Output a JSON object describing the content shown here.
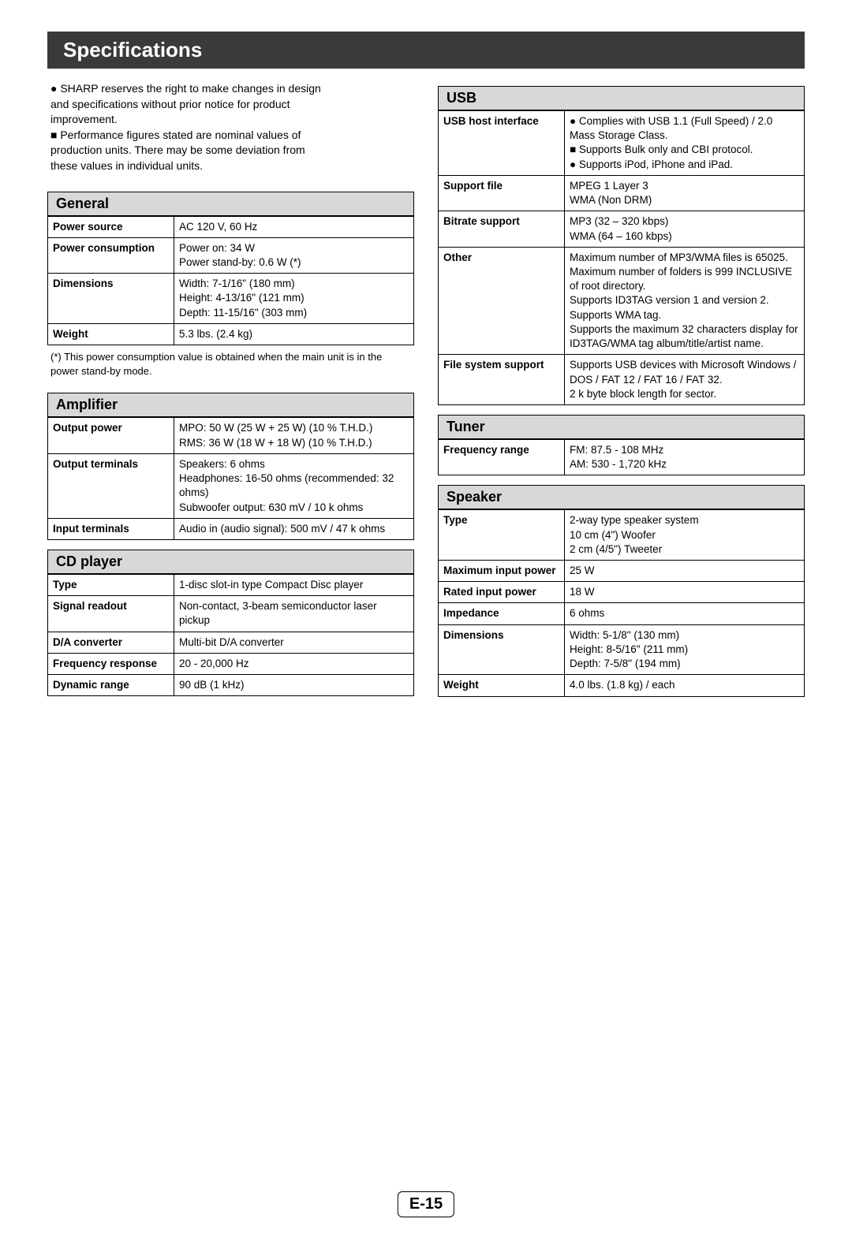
{
  "page_number": "E-15",
  "title": "Specifications",
  "intro_lines": [
    "● SHARP reserves the right to make changes in design",
    "  and specifications without prior notice for product",
    "  improvement.",
    "■ Performance figures stated are nominal values of",
    "  production units. There may be some deviation from",
    "  these values in individual units."
  ],
  "sections": {
    "general": {
      "header": "General",
      "rows": [
        {
          "label": "Power source",
          "value": "AC 120 V, 60 Hz"
        },
        {
          "label": "Power consumption",
          "value": "Power on: 34 W\nPower stand-by: 0.6 W (*)"
        },
        {
          "label": "Dimensions",
          "value": "Width: 7-1/16\"   (180 mm)\nHeight: 4-13/16\" (121 mm)\nDepth: 11-15/16\" (303 mm)"
        },
        {
          "label": "Weight",
          "value": "5.3 lbs. (2.4 kg)"
        }
      ],
      "footnote": "(*) This power consumption value is obtained when the main unit is in the power stand-by mode."
    },
    "amplifier": {
      "header": "Amplifier",
      "rows": [
        {
          "label": "Output power",
          "value": "MPO:  50 W (25 W + 25 W) (10 % T.H.D.)\nRMS: 36 W (18 W + 18 W) (10 % T.H.D.)"
        },
        {
          "label": "Output terminals",
          "value": "Speakers: 6 ohms\nHeadphones: 16-50 ohms (recommended: 32 ohms)\nSubwoofer output: 630 mV / 10 k ohms"
        },
        {
          "label": "Input terminals",
          "value": "Audio in (audio signal): 500 mV / 47 k ohms"
        }
      ]
    },
    "cdplayer": {
      "header": "CD player",
      "rows": [
        {
          "label": "Type",
          "value": "1-disc slot-in type Compact Disc player"
        },
        {
          "label": "Signal readout",
          "value": "Non-contact, 3-beam semiconductor laser pickup"
        },
        {
          "label": "D/A converter",
          "value": "Multi-bit D/A converter"
        },
        {
          "label": "Frequency response",
          "value": "20 - 20,000 Hz"
        },
        {
          "label": "Dynamic range",
          "value": "90 dB (1 kHz)"
        }
      ]
    },
    "usb": {
      "header": "USB",
      "rows": [
        {
          "label": "USB host interface",
          "value": "● Complies with USB 1.1 (Full Speed) / 2.0 Mass Storage Class.\n■ Supports Bulk only and CBI protocol.\n● Supports iPod, iPhone and iPad."
        },
        {
          "label": "Support file",
          "value": "MPEG 1 Layer 3\nWMA (Non DRM)"
        },
        {
          "label": "Bitrate support",
          "value": "MP3 (32 – 320 kbps)\nWMA (64 – 160 kbps)"
        },
        {
          "label": "Other",
          "value": "Maximum number of MP3/WMA files is 65025.\nMaximum number of folders is 999 INCLUSIVE of root directory.\nSupports ID3TAG version 1 and version 2.\nSupports WMA tag.\nSupports the maximum 32 characters display for ID3TAG/WMA tag album/title/artist name."
        },
        {
          "label": "File system support",
          "value": "Supports USB devices with Microsoft Windows / DOS / FAT 12 / FAT 16 / FAT 32.\n2 k byte block length for sector."
        }
      ]
    },
    "tuner": {
      "header": "Tuner",
      "rows": [
        {
          "label": "Frequency range",
          "value": "FM: 87.5 - 108 MHz\nAM: 530 - 1,720 kHz"
        }
      ]
    },
    "speaker": {
      "header": "Speaker",
      "rows": [
        {
          "label": "Type",
          "value": "2-way type speaker system\n10 cm (4\") Woofer\n2 cm (4/5\") Tweeter"
        },
        {
          "label": "Maximum input power",
          "value": "25 W"
        },
        {
          "label": "Rated input power",
          "value": "18 W"
        },
        {
          "label": "Impedance",
          "value": "6 ohms"
        },
        {
          "label": "Dimensions",
          "value": "Width: 5-1/8\"   (130 mm)\nHeight: 8-5/16\" (211 mm)\nDepth: 7-5/8\"  (194 mm)"
        },
        {
          "label": "Weight",
          "value": "4.0 lbs. (1.8 kg) / each"
        }
      ]
    }
  }
}
